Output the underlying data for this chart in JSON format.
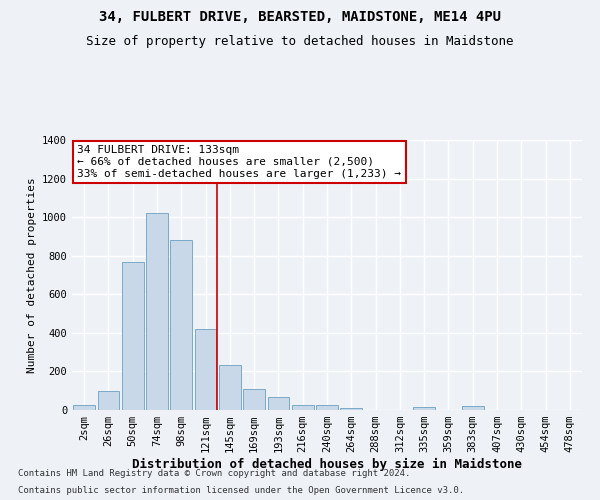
{
  "title_line1": "34, FULBERT DRIVE, BEARSTED, MAIDSTONE, ME14 4PU",
  "title_line2": "Size of property relative to detached houses in Maidstone",
  "xlabel": "Distribution of detached houses by size in Maidstone",
  "ylabel": "Number of detached properties",
  "footnote1": "Contains HM Land Registry data © Crown copyright and database right 2024.",
  "footnote2": "Contains public sector information licensed under the Open Government Licence v3.0.",
  "bar_labels": [
    "2sqm",
    "26sqm",
    "50sqm",
    "74sqm",
    "98sqm",
    "121sqm",
    "145sqm",
    "169sqm",
    "193sqm",
    "216sqm",
    "240sqm",
    "264sqm",
    "288sqm",
    "312sqm",
    "335sqm",
    "359sqm",
    "383sqm",
    "407sqm",
    "430sqm",
    "454sqm",
    "478sqm"
  ],
  "bar_values": [
    25,
    100,
    770,
    1020,
    880,
    420,
    235,
    110,
    70,
    25,
    25,
    10,
    0,
    0,
    15,
    0,
    20,
    0,
    0,
    0,
    0
  ],
  "bar_color": "#c8d8e8",
  "bar_edge_color": "#7aaac8",
  "ylim": [
    0,
    1400
  ],
  "yticks": [
    0,
    200,
    400,
    600,
    800,
    1000,
    1200,
    1400
  ],
  "vline_color": "#cc0000",
  "annotation_line1": "34 FULBERT DRIVE: 133sqm",
  "annotation_line2": "← 66% of detached houses are smaller (2,500)",
  "annotation_line3": "33% of semi-detached houses are larger (1,233) →",
  "annotation_box_color": "#ffffff",
  "annotation_box_edge": "#cc0000",
  "background_color": "#eef2f7",
  "grid_color": "#ffffff",
  "title_fontsize": 10,
  "subtitle_fontsize": 9,
  "annotation_fontsize": 8,
  "tick_fontsize": 7.5,
  "xlabel_fontsize": 9,
  "ylabel_fontsize": 8
}
